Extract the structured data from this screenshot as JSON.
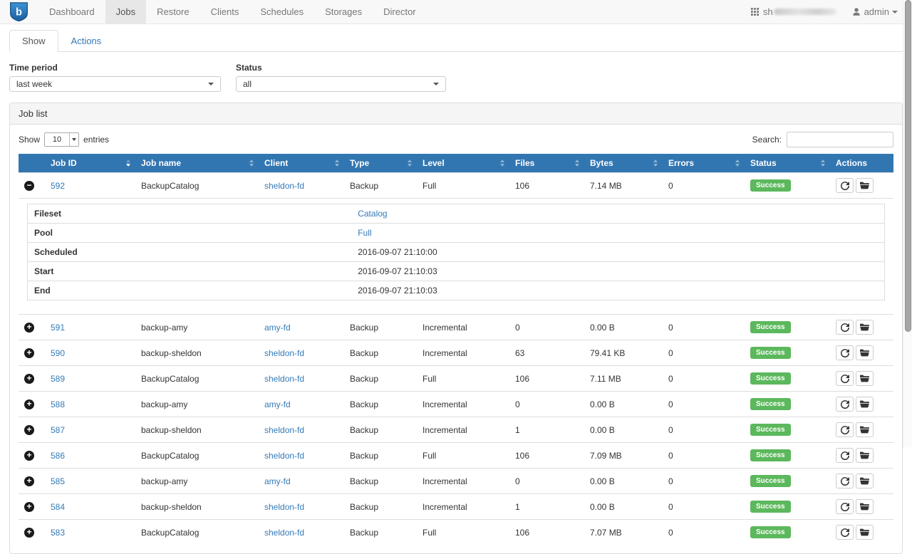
{
  "colors": {
    "table_header": "#3276b1",
    "link": "#337ab7",
    "success_badge": "#5cb85c"
  },
  "navbar": {
    "brand_letter": "b",
    "items": [
      {
        "label": "Dashboard",
        "active": false
      },
      {
        "label": "Jobs",
        "active": true
      },
      {
        "label": "Restore",
        "active": false
      },
      {
        "label": "Clients",
        "active": false
      },
      {
        "label": "Schedules",
        "active": false
      },
      {
        "label": "Storages",
        "active": false
      },
      {
        "label": "Director",
        "active": false
      }
    ],
    "right": {
      "host_prefix": "sh",
      "host_redacted": true,
      "user": "admin"
    }
  },
  "tabs": [
    {
      "label": "Show",
      "active": true
    },
    {
      "label": "Actions",
      "active": false
    }
  ],
  "filters": {
    "time_period": {
      "label": "Time period",
      "value": "last week"
    },
    "status": {
      "label": "Status",
      "value": "all"
    }
  },
  "job_list": {
    "panel_title": "Job list",
    "length_menu": {
      "prefix": "Show",
      "value": "10",
      "suffix": "entries"
    },
    "search_label": "Search:",
    "search_value": "",
    "columns": [
      "",
      "Job ID",
      "Job name",
      "Client",
      "Type",
      "Level",
      "Files",
      "Bytes",
      "Errors",
      "Status",
      "Actions"
    ],
    "sorted_column": "Job ID",
    "sort_direction": "desc",
    "rows": [
      {
        "id": "592",
        "name": "BackupCatalog",
        "client": "sheldon-fd",
        "type": "Backup",
        "level": "Full",
        "files": "106",
        "bytes": "7.14 MB",
        "errors": "0",
        "status": "Success",
        "expanded": true,
        "details": [
          {
            "label": "Fileset",
            "value": "Catalog",
            "is_link": true
          },
          {
            "label": "Pool",
            "value": "Full",
            "is_link": true
          },
          {
            "label": "Scheduled",
            "value": "2016-09-07 21:10:00",
            "is_link": false
          },
          {
            "label": "Start",
            "value": "2016-09-07 21:10:03",
            "is_link": false
          },
          {
            "label": "End",
            "value": "2016-09-07 21:10:03",
            "is_link": false
          }
        ]
      },
      {
        "id": "591",
        "name": "backup-amy",
        "client": "amy-fd",
        "type": "Backup",
        "level": "Incremental",
        "files": "0",
        "bytes": "0.00 B",
        "errors": "0",
        "status": "Success",
        "expanded": false
      },
      {
        "id": "590",
        "name": "backup-sheldon",
        "client": "sheldon-fd",
        "type": "Backup",
        "level": "Incremental",
        "files": "63",
        "bytes": "79.41 KB",
        "errors": "0",
        "status": "Success",
        "expanded": false
      },
      {
        "id": "589",
        "name": "BackupCatalog",
        "client": "sheldon-fd",
        "type": "Backup",
        "level": "Full",
        "files": "106",
        "bytes": "7.11 MB",
        "errors": "0",
        "status": "Success",
        "expanded": false
      },
      {
        "id": "588",
        "name": "backup-amy",
        "client": "amy-fd",
        "type": "Backup",
        "level": "Incremental",
        "files": "0",
        "bytes": "0.00 B",
        "errors": "0",
        "status": "Success",
        "expanded": false
      },
      {
        "id": "587",
        "name": "backup-sheldon",
        "client": "sheldon-fd",
        "type": "Backup",
        "level": "Incremental",
        "files": "1",
        "bytes": "0.00 B",
        "errors": "0",
        "status": "Success",
        "expanded": false
      },
      {
        "id": "586",
        "name": "BackupCatalog",
        "client": "sheldon-fd",
        "type": "Backup",
        "level": "Full",
        "files": "106",
        "bytes": "7.09 MB",
        "errors": "0",
        "status": "Success",
        "expanded": false
      },
      {
        "id": "585",
        "name": "backup-amy",
        "client": "amy-fd",
        "type": "Backup",
        "level": "Incremental",
        "files": "0",
        "bytes": "0.00 B",
        "errors": "0",
        "status": "Success",
        "expanded": false
      },
      {
        "id": "584",
        "name": "backup-sheldon",
        "client": "sheldon-fd",
        "type": "Backup",
        "level": "Incremental",
        "files": "1",
        "bytes": "0.00 B",
        "errors": "0",
        "status": "Success",
        "expanded": false
      },
      {
        "id": "583",
        "name": "BackupCatalog",
        "client": "sheldon-fd",
        "type": "Backup",
        "level": "Full",
        "files": "106",
        "bytes": "7.07 MB",
        "errors": "0",
        "status": "Success",
        "expanded": false
      }
    ]
  }
}
